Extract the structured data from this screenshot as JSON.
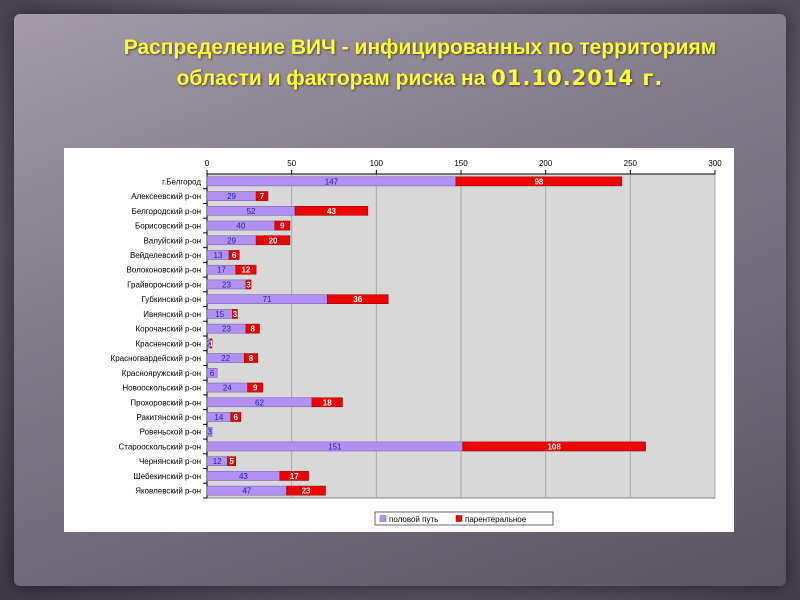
{
  "slide": {
    "title_line1": "Распределение ВИЧ - инфицированных по территориям",
    "title_line2": "области и факторам риска  на ",
    "title_date": "01.10.2014 г."
  },
  "colors": {
    "series_sexual": "#b090f0",
    "series_parenteral": "#ee0000",
    "label_sexual": "#2020c0",
    "label_parenteral": "#ffffff"
  },
  "chart_data": {
    "type": "bar",
    "orientation": "horizontal",
    "stacked": true,
    "categories": [
      "г.Белгород",
      "Алексеевский р-он",
      "Белгородский р-он",
      "Борисовский р-он",
      "Валуйский р-он",
      "Вейделевский р-он",
      "Волоконовский р-он",
      "Грайворонский р-он",
      "Губкинский р-он",
      "Ивнянский р-он",
      "Корочанский р-он",
      "Красненский р-он",
      "Красногвардейский р-он",
      "Краснояружский р-он",
      "Новооскольский р-он",
      "Прохоровский р-он",
      "Ракитянский р-он",
      "Ровеньской р-он",
      "Старооскольский р-он",
      "Чернянский р-он",
      "Шебекинский р-он",
      "Яковлевский р-он"
    ],
    "series": [
      {
        "name": "половой путь",
        "values": [
          147,
          29,
          52,
          40,
          29,
          13,
          17,
          23,
          71,
          15,
          23,
          2,
          22,
          6,
          24,
          62,
          14,
          3,
          151,
          12,
          43,
          47
        ]
      },
      {
        "name": "парентеральное",
        "values": [
          98,
          7,
          43,
          9,
          20,
          6,
          12,
          3,
          36,
          3,
          8,
          1,
          8,
          0,
          9,
          18,
          6,
          0,
          108,
          5,
          17,
          23
        ]
      }
    ],
    "xlim": [
      0,
      300
    ],
    "x_ticks": [
      "0",
      "50",
      "100",
      "150",
      "200",
      "250",
      "300"
    ],
    "x_axis_position": "top",
    "grid": true,
    "legend": "bottom"
  }
}
